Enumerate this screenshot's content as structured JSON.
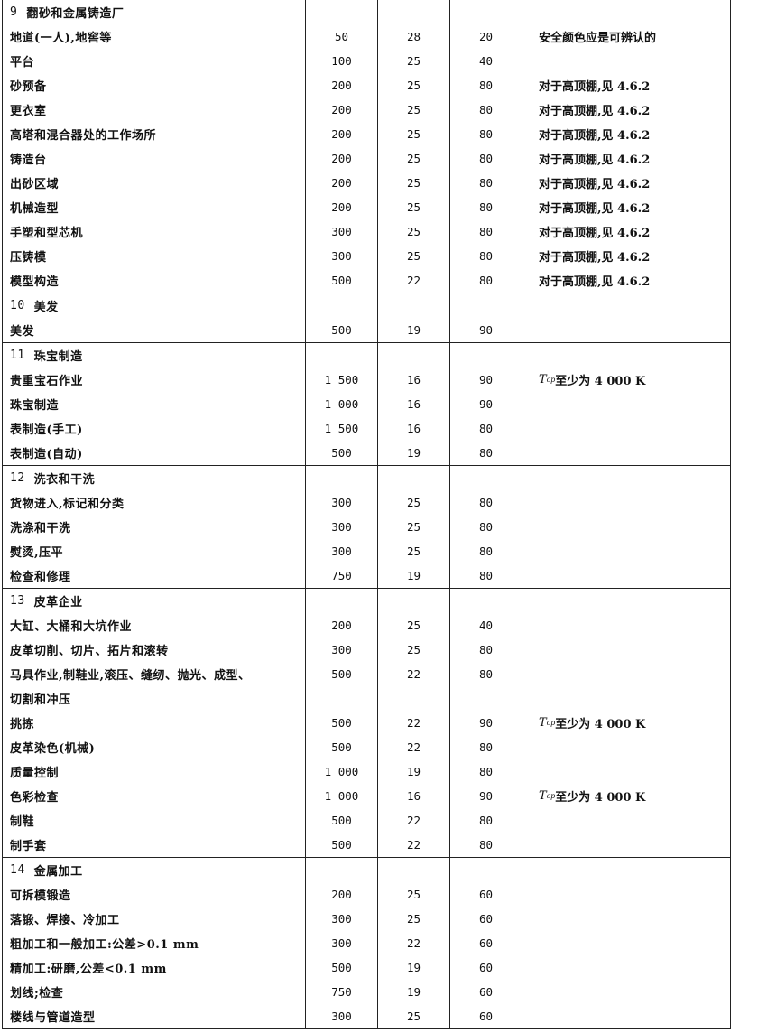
{
  "sections": [
    {
      "num": "9",
      "title": "翻砂和金属铸造厂",
      "rows": [
        {
          "name": "地道(一人),地窖等",
          "lux": "50",
          "ugr": "28",
          "ra": "20",
          "note": "安全颜色应是可辨认的"
        },
        {
          "name": "平台",
          "lux": "100",
          "ugr": "25",
          "ra": "40",
          "note": ""
        },
        {
          "name": "砂预备",
          "lux": "200",
          "ugr": "25",
          "ra": "80",
          "note": "对于高顶棚,见 4.6.2"
        },
        {
          "name": "更衣室",
          "lux": "200",
          "ugr": "25",
          "ra": "80",
          "note": "对于高顶棚,见 4.6.2"
        },
        {
          "name": "高塔和混合器处的工作场所",
          "lux": "200",
          "ugr": "25",
          "ra": "80",
          "note": "对于高顶棚,见 4.6.2"
        },
        {
          "name": "铸造台",
          "lux": "200",
          "ugr": "25",
          "ra": "80",
          "note": "对于高顶棚,见 4.6.2"
        },
        {
          "name": "出砂区域",
          "lux": "200",
          "ugr": "25",
          "ra": "80",
          "note": "对于高顶棚,见 4.6.2"
        },
        {
          "name": "机械造型",
          "lux": "200",
          "ugr": "25",
          "ra": "80",
          "note": "对于高顶棚,见 4.6.2"
        },
        {
          "name": "手塑和型芯机",
          "lux": "300",
          "ugr": "25",
          "ra": "80",
          "note": "对于高顶棚,见 4.6.2"
        },
        {
          "name": "压铸模",
          "lux": "300",
          "ugr": "25",
          "ra": "80",
          "note": "对于高顶棚,见 4.6.2"
        },
        {
          "name": "模型构造",
          "lux": "500",
          "ugr": "22",
          "ra": "80",
          "note": "对于高顶棚,见 4.6.2"
        }
      ]
    },
    {
      "num": "10",
      "title": "美发",
      "rows": [
        {
          "name": "美发",
          "lux": "500",
          "ugr": "19",
          "ra": "90",
          "note": ""
        }
      ]
    },
    {
      "num": "11",
      "title": "珠宝制造",
      "rows": [
        {
          "name": "贵重宝石作业",
          "lux": "1 500",
          "ugr": "16",
          "ra": "90",
          "note_symbol": "T",
          "note_sub": "cp",
          "note": "至少为 4 000 K"
        },
        {
          "name": "珠宝制造",
          "lux": "1 000",
          "ugr": "16",
          "ra": "90",
          "note": ""
        },
        {
          "name": "表制造(手工)",
          "lux": "1 500",
          "ugr": "16",
          "ra": "80",
          "note": ""
        },
        {
          "name": "表制造(自动)",
          "lux": "500",
          "ugr": "19",
          "ra": "80",
          "note": ""
        }
      ]
    },
    {
      "num": "12",
      "title": "洗衣和干洗",
      "rows": [
        {
          "name": "货物进入,标记和分类",
          "lux": "300",
          "ugr": "25",
          "ra": "80",
          "note": ""
        },
        {
          "name": "洗涤和干洗",
          "lux": "300",
          "ugr": "25",
          "ra": "80",
          "note": ""
        },
        {
          "name": "熨烫,压平",
          "lux": "300",
          "ugr": "25",
          "ra": "80",
          "note": ""
        },
        {
          "name": "检查和修理",
          "lux": "750",
          "ugr": "19",
          "ra": "80",
          "note": ""
        }
      ]
    },
    {
      "num": "13",
      "title": "皮革企业",
      "rows": [
        {
          "name": "大缸、大桶和大坑作业",
          "lux": "200",
          "ugr": "25",
          "ra": "40",
          "note": ""
        },
        {
          "name": "皮革切削、切片、拓片和滚转",
          "lux": "300",
          "ugr": "25",
          "ra": "80",
          "note": ""
        },
        {
          "name": "马具作业,制鞋业,滚压、缝纫、抛光、成型、",
          "name2": "切割和冲压",
          "lux": "500",
          "ugr": "22",
          "ra": "80",
          "note": ""
        },
        {
          "name": "挑拣",
          "lux": "500",
          "ugr": "22",
          "ra": "90",
          "note_symbol": "T",
          "note_sub": "cp",
          "note": "至少为 4 000 K"
        },
        {
          "name": "皮革染色(机械)",
          "lux": "500",
          "ugr": "22",
          "ra": "80",
          "note": ""
        },
        {
          "name": "质量控制",
          "lux": "1 000",
          "ugr": "19",
          "ra": "80",
          "note": ""
        },
        {
          "name": "色彩检查",
          "lux": "1 000",
          "ugr": "16",
          "ra": "90",
          "note_symbol": "T",
          "note_sub": "cp",
          "note": "至少为 4 000 K"
        },
        {
          "name": "制鞋",
          "lux": "500",
          "ugr": "22",
          "ra": "80",
          "note": ""
        },
        {
          "name": "制手套",
          "lux": "500",
          "ugr": "22",
          "ra": "80",
          "note": ""
        }
      ]
    },
    {
      "num": "14",
      "title": "金属加工",
      "rows": [
        {
          "name": "可拆模锻造",
          "lux": "200",
          "ugr": "25",
          "ra": "60",
          "note": ""
        },
        {
          "name": "落锻、焊接、冷加工",
          "lux": "300",
          "ugr": "25",
          "ra": "60",
          "note": ""
        },
        {
          "name": "粗加工和一般加工:公差>0.1 mm",
          "lux": "300",
          "ugr": "22",
          "ra": "60",
          "note": ""
        },
        {
          "name": "精加工:研磨,公差<0.1 mm",
          "lux": "500",
          "ugr": "19",
          "ra": "60",
          "note": ""
        },
        {
          "name": "划线;检查",
          "lux": "750",
          "ugr": "19",
          "ra": "60",
          "note": ""
        },
        {
          "name": "楼线与管道造型",
          "lux": "300",
          "ugr": "25",
          "ra": "60",
          "note": ""
        }
      ]
    }
  ]
}
